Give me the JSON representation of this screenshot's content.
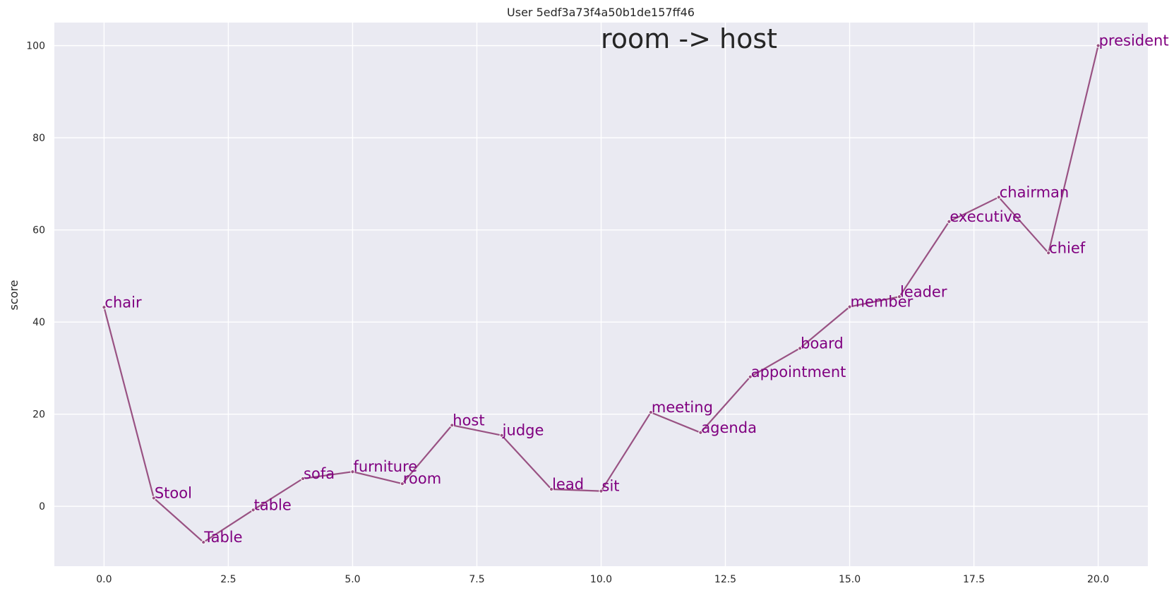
{
  "chart_data": {
    "type": "line",
    "title": "User 5edf3a73f4a50b1de157ff46",
    "annotation": "room -> host",
    "xlabel": "",
    "ylabel": "score",
    "xlim": [
      -1,
      21
    ],
    "ylim": [
      -13,
      105
    ],
    "grid": true,
    "xticks": [
      0.0,
      2.5,
      5.0,
      7.5,
      10.0,
      12.5,
      15.0,
      17.5,
      20.0
    ],
    "xtick_labels": [
      "0.0",
      "2.5",
      "5.0",
      "7.5",
      "10.0",
      "12.5",
      "15.0",
      "17.5",
      "20.0"
    ],
    "yticks": [
      0,
      20,
      40,
      60,
      80,
      100
    ],
    "ytick_labels": [
      "0",
      "20",
      "40",
      "60",
      "80",
      "100"
    ],
    "series": [
      {
        "color": "#995283",
        "x": [
          0,
          1,
          2,
          3,
          4,
          5,
          6,
          7,
          8,
          9,
          10,
          11,
          12,
          13,
          14,
          15,
          16,
          17,
          18,
          19,
          20
        ],
        "y": [
          43.2,
          1.8,
          -7.8,
          -0.8,
          6.0,
          7.5,
          4.9,
          17.6,
          15.4,
          3.7,
          3.3,
          20.4,
          16.0,
          28.1,
          34.3,
          43.3,
          45.5,
          61.8,
          67.1,
          55.0,
          100.0
        ],
        "labels": [
          "chair",
          "Stool",
          "Table",
          "table",
          "sofa",
          "furniture",
          "room",
          "host",
          "judge",
          "lead",
          "sit",
          "meeting",
          "agenda",
          "appointment",
          "board",
          "member",
          "leader",
          "executive",
          "chairman",
          "chief",
          "president"
        ]
      }
    ],
    "label_color": "#800080"
  }
}
